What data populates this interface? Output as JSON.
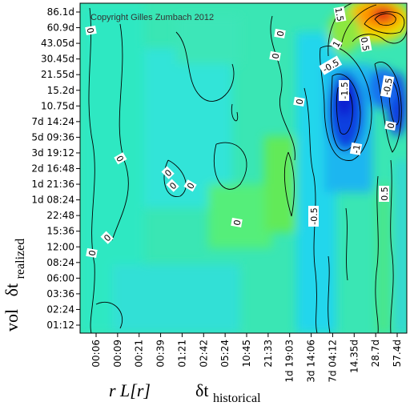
{
  "chart_data": {
    "type": "heatmap",
    "copyright": "Copyright Gilles Zumbach 2012",
    "xlabel": {
      "main": "r L[r]",
      "delta": "δt",
      "sub": "historical"
    },
    "ylabel": {
      "main": "vol",
      "delta": "δt",
      "sub": "realized"
    },
    "x_ticks": [
      "00:06",
      "00:09",
      "00:21",
      "00:39",
      "01:21",
      "02:42",
      "05:24",
      "10:45",
      "21:33",
      "1d 19:03",
      "3d 14:06",
      "7d 04:12",
      "14.35d",
      "28.7d",
      "57.4d"
    ],
    "y_ticks": [
      "86.1d",
      "60.9d",
      "43.05d",
      "30.45d",
      "21.55d",
      "15.2d",
      "10.75d",
      "7d 14:24",
      "5d 09:36",
      "3d 19:12",
      "2d 16:48",
      "1d 21:36",
      "1d 08:24",
      "22:48",
      "15:36",
      "12:00",
      "08:24",
      "06:00",
      "03:36",
      "02:24",
      "01:12"
    ],
    "contour_labels": [
      "1.5",
      "1",
      "0.5",
      "0",
      "0",
      "0",
      "0",
      "0",
      "0",
      "0",
      "0",
      "0",
      "0",
      "0",
      "-0.5",
      "-1.5",
      "-1",
      "-0.5",
      "0.5",
      "-0.5",
      "0"
    ],
    "colors": {
      "low": "#0a2fd6",
      "mid": "#2ee6c8",
      "high": "#e02a10",
      "peak": "#ff9000"
    }
  }
}
